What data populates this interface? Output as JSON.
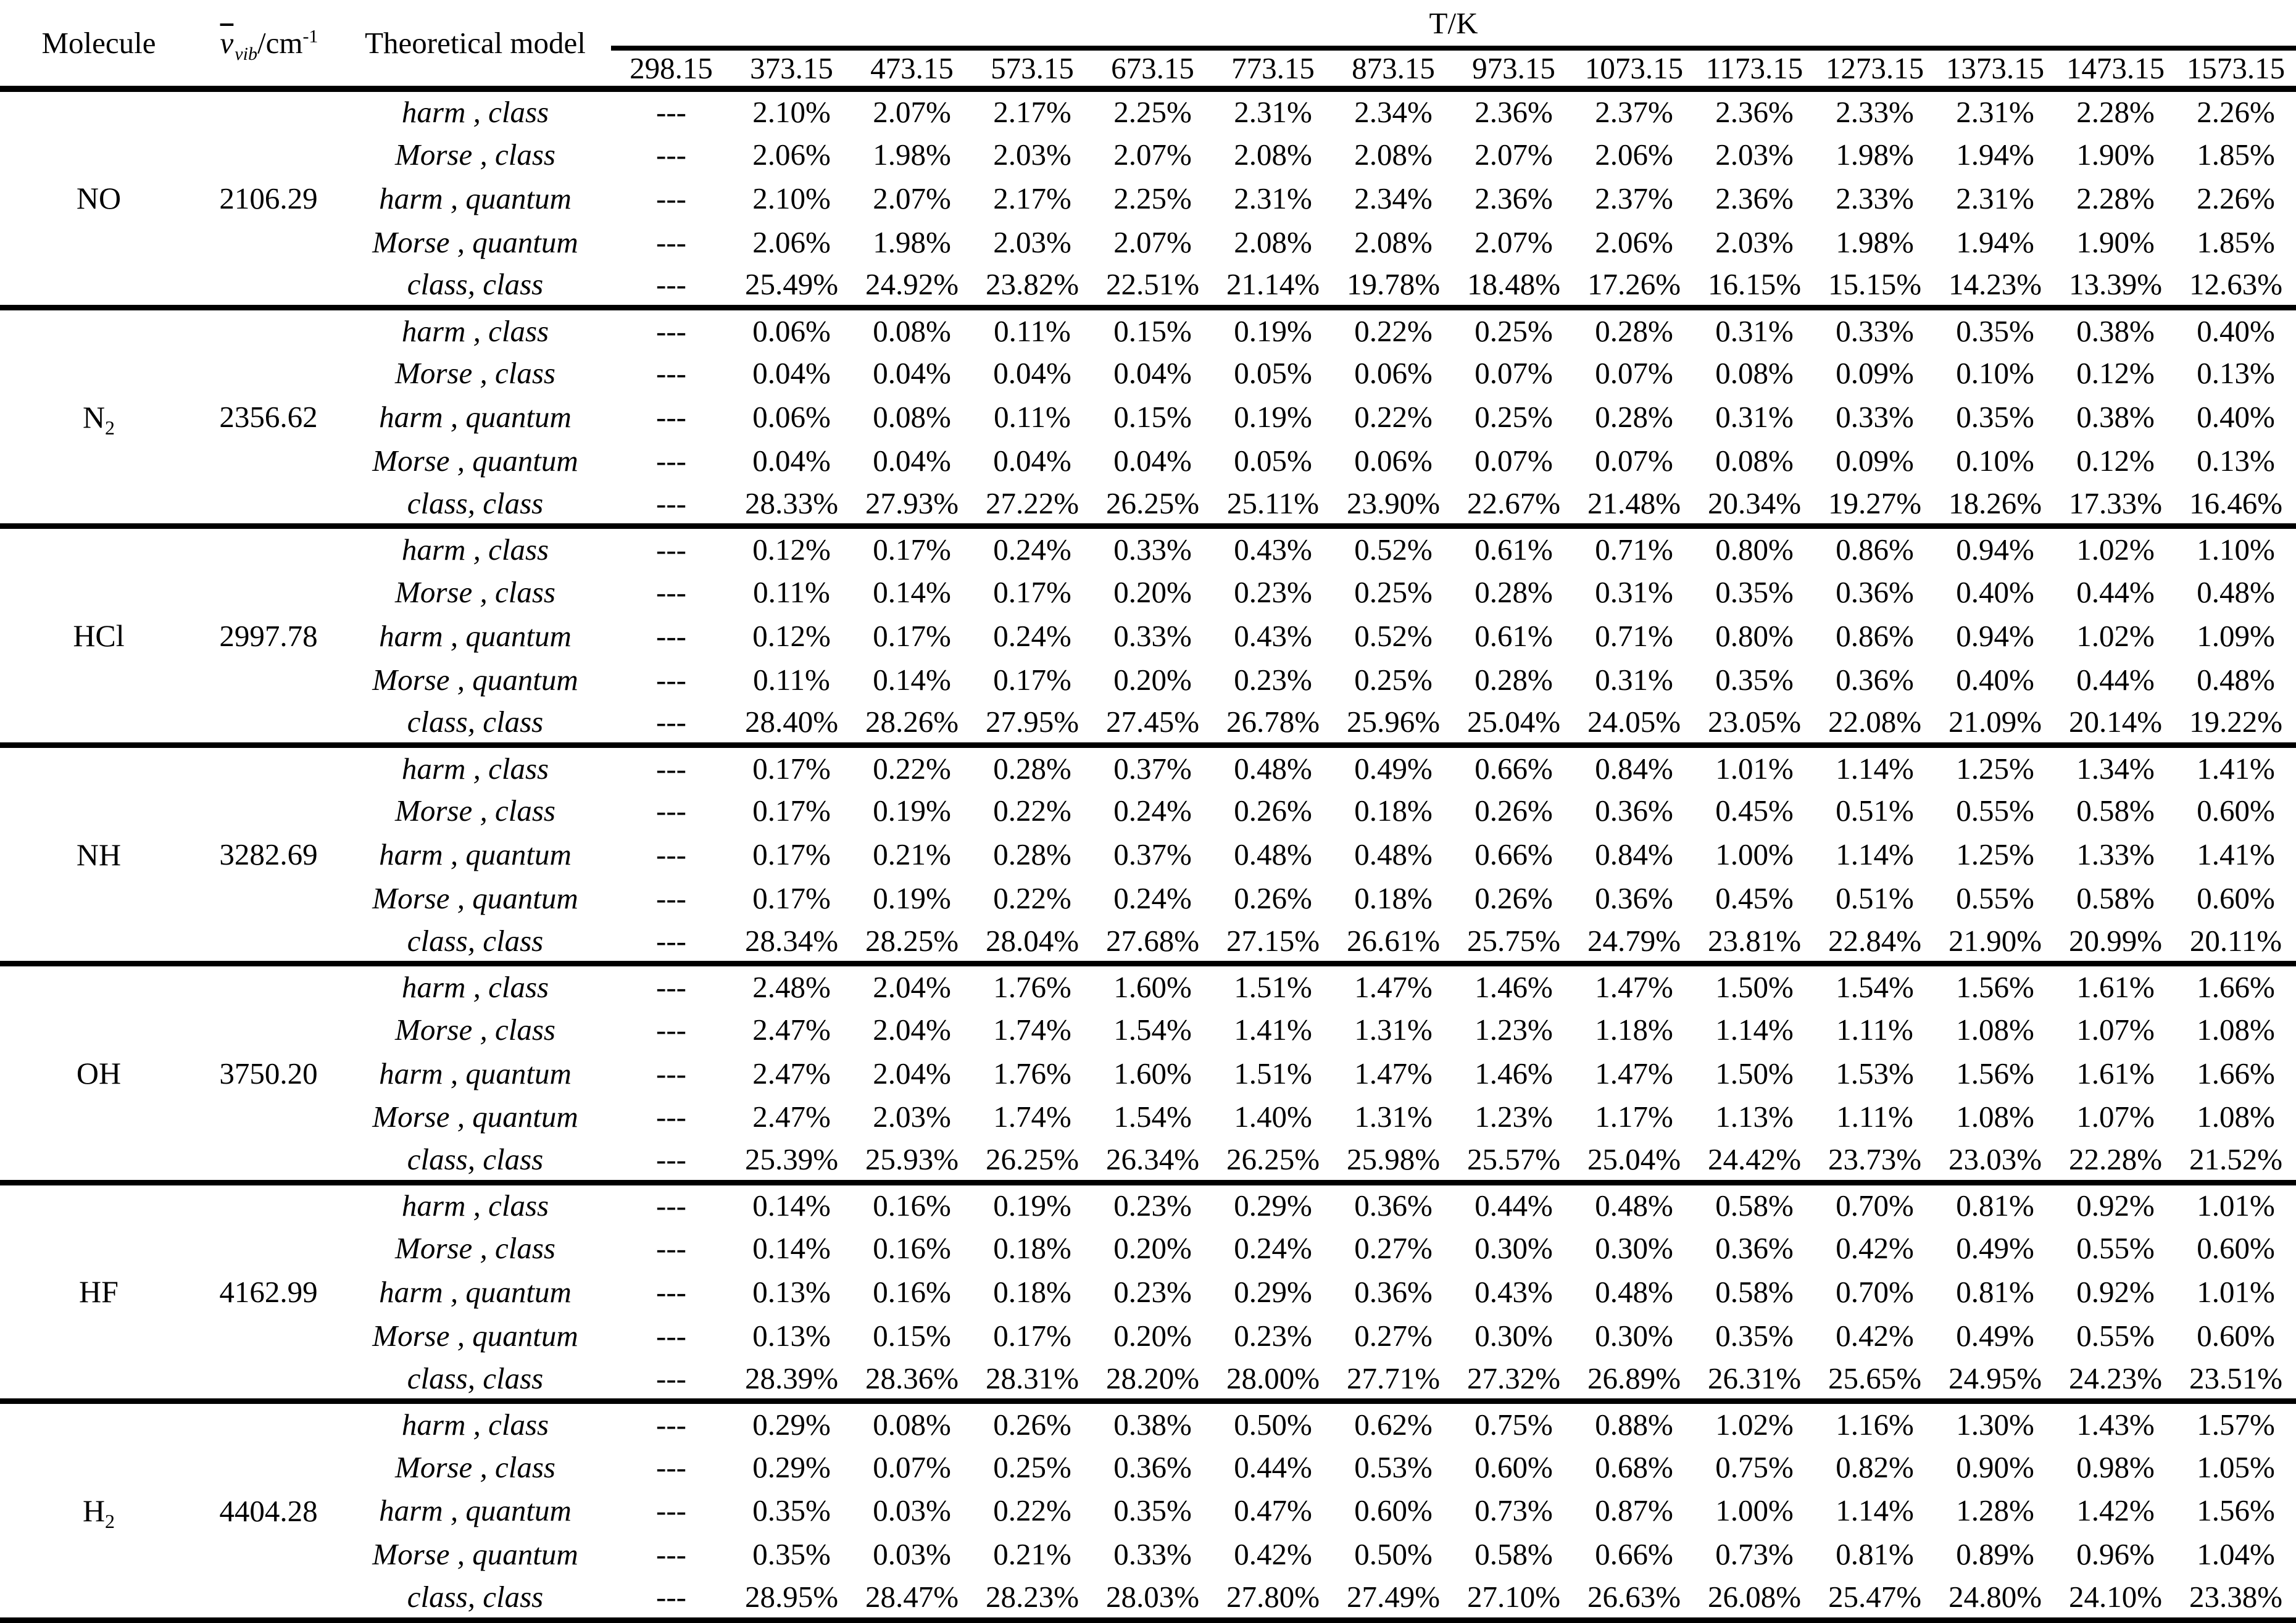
{
  "header": {
    "molecule_label": "Molecule",
    "freq_label": {
      "symbol": "ν",
      "subscript": "vib",
      "unit": "/cm",
      "superscript": "-1"
    },
    "model_label": "Theoretical model",
    "temp_group_label": "T/K",
    "temps": [
      "298.15",
      "373.15",
      "473.15",
      "573.15",
      "673.15",
      "773.15",
      "873.15",
      "973.15",
      "1073.15",
      "1173.15",
      "1273.15",
      "1373.15",
      "1473.15",
      "1573.15"
    ]
  },
  "model_labels": [
    "harm , class",
    "Morse , class",
    "harm , quantum",
    "Morse , quantum",
    "class, class"
  ],
  "blocks": [
    {
      "molecule": "NO",
      "molecule_sub": "",
      "freq": "2106.29",
      "rows": [
        [
          "---",
          "2.10%",
          "2.07%",
          "2.17%",
          "2.25%",
          "2.31%",
          "2.34%",
          "2.36%",
          "2.37%",
          "2.36%",
          "2.33%",
          "2.31%",
          "2.28%",
          "2.26%"
        ],
        [
          "---",
          "2.06%",
          "1.98%",
          "2.03%",
          "2.07%",
          "2.08%",
          "2.08%",
          "2.07%",
          "2.06%",
          "2.03%",
          "1.98%",
          "1.94%",
          "1.90%",
          "1.85%"
        ],
        [
          "---",
          "2.10%",
          "2.07%",
          "2.17%",
          "2.25%",
          "2.31%",
          "2.34%",
          "2.36%",
          "2.37%",
          "2.36%",
          "2.33%",
          "2.31%",
          "2.28%",
          "2.26%"
        ],
        [
          "---",
          "2.06%",
          "1.98%",
          "2.03%",
          "2.07%",
          "2.08%",
          "2.08%",
          "2.07%",
          "2.06%",
          "2.03%",
          "1.98%",
          "1.94%",
          "1.90%",
          "1.85%"
        ],
        [
          "---",
          "25.49%",
          "24.92%",
          "23.82%",
          "22.51%",
          "21.14%",
          "19.78%",
          "18.48%",
          "17.26%",
          "16.15%",
          "15.15%",
          "14.23%",
          "13.39%",
          "12.63%"
        ]
      ]
    },
    {
      "molecule": "N",
      "molecule_sub": "2",
      "freq": "2356.62",
      "rows": [
        [
          "---",
          "0.06%",
          "0.08%",
          "0.11%",
          "0.15%",
          "0.19%",
          "0.22%",
          "0.25%",
          "0.28%",
          "0.31%",
          "0.33%",
          "0.35%",
          "0.38%",
          "0.40%"
        ],
        [
          "---",
          "0.04%",
          "0.04%",
          "0.04%",
          "0.04%",
          "0.05%",
          "0.06%",
          "0.07%",
          "0.07%",
          "0.08%",
          "0.09%",
          "0.10%",
          "0.12%",
          "0.13%"
        ],
        [
          "---",
          "0.06%",
          "0.08%",
          "0.11%",
          "0.15%",
          "0.19%",
          "0.22%",
          "0.25%",
          "0.28%",
          "0.31%",
          "0.33%",
          "0.35%",
          "0.38%",
          "0.40%"
        ],
        [
          "---",
          "0.04%",
          "0.04%",
          "0.04%",
          "0.04%",
          "0.05%",
          "0.06%",
          "0.07%",
          "0.07%",
          "0.08%",
          "0.09%",
          "0.10%",
          "0.12%",
          "0.13%"
        ],
        [
          "---",
          "28.33%",
          "27.93%",
          "27.22%",
          "26.25%",
          "25.11%",
          "23.90%",
          "22.67%",
          "21.48%",
          "20.34%",
          "19.27%",
          "18.26%",
          "17.33%",
          "16.46%"
        ]
      ]
    },
    {
      "molecule": "HCl",
      "molecule_sub": "",
      "freq": "2997.78",
      "rows": [
        [
          "---",
          "0.12%",
          "0.17%",
          "0.24%",
          "0.33%",
          "0.43%",
          "0.52%",
          "0.61%",
          "0.71%",
          "0.80%",
          "0.86%",
          "0.94%",
          "1.02%",
          "1.10%"
        ],
        [
          "---",
          "0.11%",
          "0.14%",
          "0.17%",
          "0.20%",
          "0.23%",
          "0.25%",
          "0.28%",
          "0.31%",
          "0.35%",
          "0.36%",
          "0.40%",
          "0.44%",
          "0.48%"
        ],
        [
          "---",
          "0.12%",
          "0.17%",
          "0.24%",
          "0.33%",
          "0.43%",
          "0.52%",
          "0.61%",
          "0.71%",
          "0.80%",
          "0.86%",
          "0.94%",
          "1.02%",
          "1.09%"
        ],
        [
          "---",
          "0.11%",
          "0.14%",
          "0.17%",
          "0.20%",
          "0.23%",
          "0.25%",
          "0.28%",
          "0.31%",
          "0.35%",
          "0.36%",
          "0.40%",
          "0.44%",
          "0.48%"
        ],
        [
          "---",
          "28.40%",
          "28.26%",
          "27.95%",
          "27.45%",
          "26.78%",
          "25.96%",
          "25.04%",
          "24.05%",
          "23.05%",
          "22.08%",
          "21.09%",
          "20.14%",
          "19.22%"
        ]
      ]
    },
    {
      "molecule": "NH",
      "molecule_sub": "",
      "freq": "3282.69",
      "rows": [
        [
          "---",
          "0.17%",
          "0.22%",
          "0.28%",
          "0.37%",
          "0.48%",
          "0.49%",
          "0.66%",
          "0.84%",
          "1.01%",
          "1.14%",
          "1.25%",
          "1.34%",
          "1.41%"
        ],
        [
          "---",
          "0.17%",
          "0.19%",
          "0.22%",
          "0.24%",
          "0.26%",
          "0.18%",
          "0.26%",
          "0.36%",
          "0.45%",
          "0.51%",
          "0.55%",
          "0.58%",
          "0.60%"
        ],
        [
          "---",
          "0.17%",
          "0.21%",
          "0.28%",
          "0.37%",
          "0.48%",
          "0.48%",
          "0.66%",
          "0.84%",
          "1.00%",
          "1.14%",
          "1.25%",
          "1.33%",
          "1.41%"
        ],
        [
          "---",
          "0.17%",
          "0.19%",
          "0.22%",
          "0.24%",
          "0.26%",
          "0.18%",
          "0.26%",
          "0.36%",
          "0.45%",
          "0.51%",
          "0.55%",
          "0.58%",
          "0.60%"
        ],
        [
          "---",
          "28.34%",
          "28.25%",
          "28.04%",
          "27.68%",
          "27.15%",
          "26.61%",
          "25.75%",
          "24.79%",
          "23.81%",
          "22.84%",
          "21.90%",
          "20.99%",
          "20.11%"
        ]
      ]
    },
    {
      "molecule": "OH",
      "molecule_sub": "",
      "freq": "3750.20",
      "rows": [
        [
          "---",
          "2.48%",
          "2.04%",
          "1.76%",
          "1.60%",
          "1.51%",
          "1.47%",
          "1.46%",
          "1.47%",
          "1.50%",
          "1.54%",
          "1.56%",
          "1.61%",
          "1.66%"
        ],
        [
          "---",
          "2.47%",
          "2.04%",
          "1.74%",
          "1.54%",
          "1.41%",
          "1.31%",
          "1.23%",
          "1.18%",
          "1.14%",
          "1.11%",
          "1.08%",
          "1.07%",
          "1.08%"
        ],
        [
          "---",
          "2.47%",
          "2.04%",
          "1.76%",
          "1.60%",
          "1.51%",
          "1.47%",
          "1.46%",
          "1.47%",
          "1.50%",
          "1.53%",
          "1.56%",
          "1.61%",
          "1.66%"
        ],
        [
          "---",
          "2.47%",
          "2.03%",
          "1.74%",
          "1.54%",
          "1.40%",
          "1.31%",
          "1.23%",
          "1.17%",
          "1.13%",
          "1.11%",
          "1.08%",
          "1.07%",
          "1.08%"
        ],
        [
          "---",
          "25.39%",
          "25.93%",
          "26.25%",
          "26.34%",
          "26.25%",
          "25.98%",
          "25.57%",
          "25.04%",
          "24.42%",
          "23.73%",
          "23.03%",
          "22.28%",
          "21.52%"
        ]
      ]
    },
    {
      "molecule": "HF",
      "molecule_sub": "",
      "freq": "4162.99",
      "rows": [
        [
          "---",
          "0.14%",
          "0.16%",
          "0.19%",
          "0.23%",
          "0.29%",
          "0.36%",
          "0.44%",
          "0.48%",
          "0.58%",
          "0.70%",
          "0.81%",
          "0.92%",
          "1.01%"
        ],
        [
          "---",
          "0.14%",
          "0.16%",
          "0.18%",
          "0.20%",
          "0.24%",
          "0.27%",
          "0.30%",
          "0.30%",
          "0.36%",
          "0.42%",
          "0.49%",
          "0.55%",
          "0.60%"
        ],
        [
          "---",
          "0.13%",
          "0.16%",
          "0.18%",
          "0.23%",
          "0.29%",
          "0.36%",
          "0.43%",
          "0.48%",
          "0.58%",
          "0.70%",
          "0.81%",
          "0.92%",
          "1.01%"
        ],
        [
          "---",
          "0.13%",
          "0.15%",
          "0.17%",
          "0.20%",
          "0.23%",
          "0.27%",
          "0.30%",
          "0.30%",
          "0.35%",
          "0.42%",
          "0.49%",
          "0.55%",
          "0.60%"
        ],
        [
          "---",
          "28.39%",
          "28.36%",
          "28.31%",
          "28.20%",
          "28.00%",
          "27.71%",
          "27.32%",
          "26.89%",
          "26.31%",
          "25.65%",
          "24.95%",
          "24.23%",
          "23.51%"
        ]
      ]
    },
    {
      "molecule": "H",
      "molecule_sub": "2",
      "freq": "4404.28",
      "rows": [
        [
          "---",
          "0.29%",
          "0.08%",
          "0.26%",
          "0.38%",
          "0.50%",
          "0.62%",
          "0.75%",
          "0.88%",
          "1.02%",
          "1.16%",
          "1.30%",
          "1.43%",
          "1.57%"
        ],
        [
          "---",
          "0.29%",
          "0.07%",
          "0.25%",
          "0.36%",
          "0.44%",
          "0.53%",
          "0.60%",
          "0.68%",
          "0.75%",
          "0.82%",
          "0.90%",
          "0.98%",
          "1.05%"
        ],
        [
          "---",
          "0.35%",
          "0.03%",
          "0.22%",
          "0.35%",
          "0.47%",
          "0.60%",
          "0.73%",
          "0.87%",
          "1.00%",
          "1.14%",
          "1.28%",
          "1.42%",
          "1.56%"
        ],
        [
          "---",
          "0.35%",
          "0.03%",
          "0.21%",
          "0.33%",
          "0.42%",
          "0.50%",
          "0.58%",
          "0.66%",
          "0.73%",
          "0.81%",
          "0.89%",
          "0.96%",
          "1.04%"
        ],
        [
          "---",
          "28.95%",
          "28.47%",
          "28.23%",
          "28.03%",
          "27.80%",
          "27.49%",
          "27.10%",
          "26.63%",
          "26.08%",
          "25.47%",
          "24.80%",
          "24.10%",
          "23.38%"
        ]
      ]
    }
  ]
}
